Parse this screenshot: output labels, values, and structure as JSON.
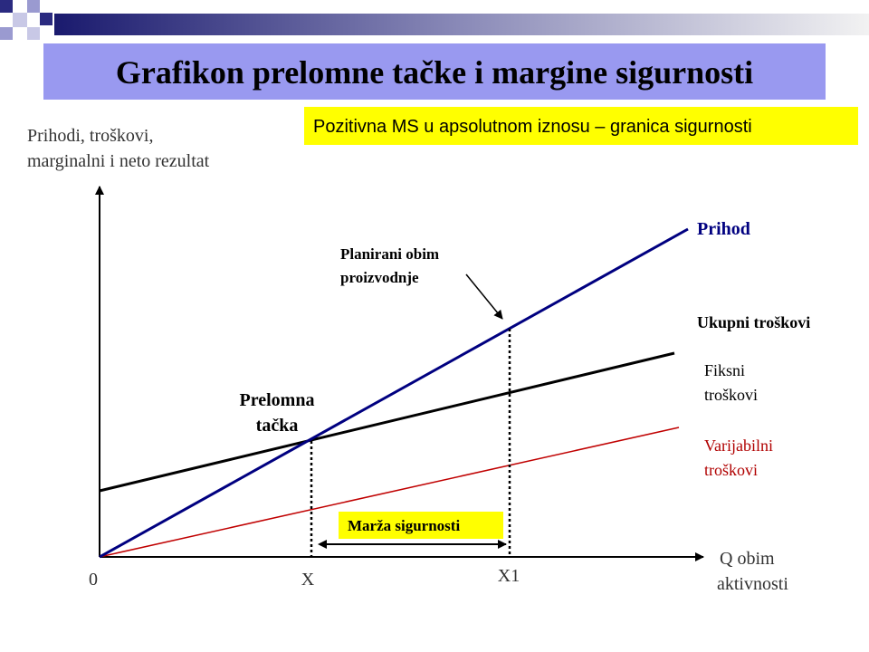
{
  "title": "Grafikon prelomne tačke i margine sigurnosti",
  "highlight": "Pozitivna MS u apsolutnom iznosu – granica sigurnosti",
  "y_axis_label": [
    "Prihodi, troškovi,",
    "marginalni i neto rezultat"
  ],
  "x_axis_label": [
    "Q obim",
    "aktivnosti"
  ],
  "origin_label": "0",
  "x_points": [
    "X",
    "X1"
  ],
  "lines": {
    "revenue": "Prihod",
    "total_costs": "Ukupni troškovi",
    "fixed_costs": [
      "Fiksni",
      "troškovi"
    ],
    "variable_costs": [
      "Varijabilni",
      "troškovi"
    ]
  },
  "annotations": {
    "planned_volume": [
      "Planirani obim",
      "proizvodnje"
    ],
    "break_even": [
      "Prelomna",
      "tačka"
    ],
    "safety_margin": "Marža sigurnosti"
  }
}
